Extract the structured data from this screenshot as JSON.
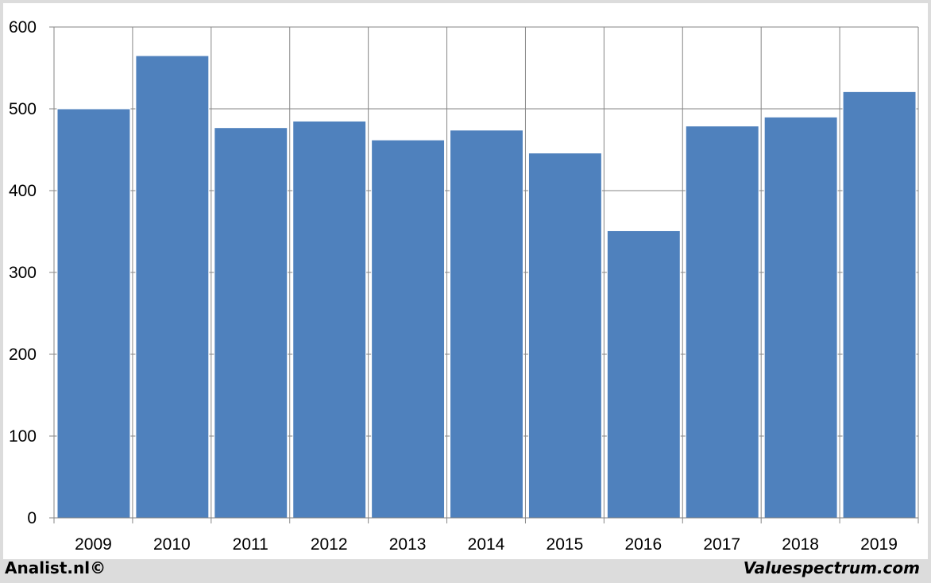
{
  "footer": {
    "left_text": "Analist.nl©",
    "right_text": "Valuespectrum.com"
  },
  "chart_data": {
    "type": "bar",
    "title": "",
    "xlabel": "",
    "ylabel": "",
    "categories": [
      "2009",
      "2010",
      "2011",
      "2012",
      "2013",
      "2014",
      "2015",
      "2016",
      "2017",
      "2018",
      "2019"
    ],
    "values": [
      500,
      565,
      477,
      485,
      462,
      474,
      446,
      351,
      479,
      490,
      521
    ],
    "ylim": [
      0,
      600
    ],
    "yticks": [
      0,
      100,
      200,
      300,
      400,
      500,
      600
    ],
    "grid": true,
    "legend": "none",
    "colors": {
      "bar": "#4f81bd",
      "grid": "#868686",
      "axis": "#868686"
    }
  }
}
